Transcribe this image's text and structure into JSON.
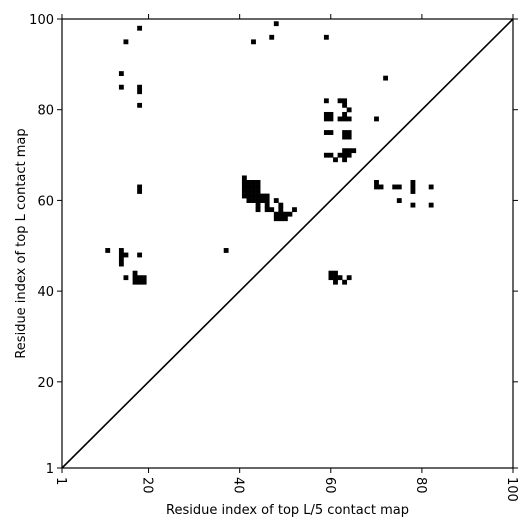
{
  "chart_data": {
    "type": "scatter",
    "xlabel": "Residue index of top L/5 contact map",
    "ylabel": "Residue index of top L contact map",
    "xlim": [
      1,
      100
    ],
    "ylim": [
      1,
      100
    ],
    "x_ticks": [
      1,
      20,
      40,
      60,
      80,
      100
    ],
    "y_ticks": [
      1,
      20,
      40,
      60,
      80,
      100
    ],
    "diagonal_line": {
      "from": [
        1,
        1
      ],
      "to": [
        100,
        100
      ]
    },
    "marker": "filled-square",
    "series": [
      {
        "values": [
          [
            18,
            98
          ],
          [
            15,
            95
          ],
          [
            43,
            95
          ],
          [
            47,
            96
          ],
          [
            48,
            99
          ],
          [
            59,
            96
          ],
          [
            14,
            88
          ],
          [
            14,
            85
          ],
          [
            18,
            84
          ],
          [
            18,
            85
          ],
          [
            18,
            81
          ],
          [
            72,
            87
          ],
          [
            18,
            62
          ],
          [
            18,
            63
          ],
          [
            11,
            49
          ],
          [
            14,
            49
          ],
          [
            14,
            48
          ],
          [
            14,
            47
          ],
          [
            14,
            46
          ],
          [
            15,
            48
          ],
          [
            18,
            48
          ],
          [
            37,
            49
          ],
          [
            15,
            43
          ],
          [
            17,
            44
          ],
          [
            17,
            42
          ],
          [
            17,
            43
          ],
          [
            18,
            42
          ],
          [
            18,
            43
          ],
          [
            19,
            42
          ],
          [
            19,
            43
          ],
          [
            59,
            82
          ],
          [
            62,
            82
          ],
          [
            63,
            82
          ],
          [
            63,
            81
          ],
          [
            64,
            80
          ],
          [
            59,
            79
          ],
          [
            60,
            79
          ],
          [
            59,
            78
          ],
          [
            60,
            78
          ],
          [
            62,
            78
          ],
          [
            63,
            78
          ],
          [
            64,
            78
          ],
          [
            63,
            79
          ],
          [
            70,
            78
          ],
          [
            59,
            75
          ],
          [
            60,
            75
          ],
          [
            63,
            75
          ],
          [
            64,
            75
          ],
          [
            63,
            74
          ],
          [
            64,
            74
          ],
          [
            59,
            70
          ],
          [
            60,
            70
          ],
          [
            61,
            69
          ],
          [
            62,
            70
          ],
          [
            63,
            69
          ],
          [
            63,
            70
          ],
          [
            64,
            70
          ],
          [
            63,
            71
          ],
          [
            64,
            71
          ],
          [
            65,
            71
          ],
          [
            70,
            64
          ],
          [
            70,
            63
          ],
          [
            71,
            63
          ],
          [
            74,
            63
          ],
          [
            75,
            63
          ],
          [
            78,
            64
          ],
          [
            78,
            63
          ],
          [
            78,
            62
          ],
          [
            82,
            63
          ],
          [
            75,
            60
          ],
          [
            78,
            59
          ],
          [
            82,
            59
          ],
          [
            41,
            65
          ],
          [
            41,
            64
          ],
          [
            41,
            63
          ],
          [
            41,
            62
          ],
          [
            41,
            61
          ],
          [
            42,
            64
          ],
          [
            42,
            63
          ],
          [
            42,
            62
          ],
          [
            42,
            61
          ],
          [
            42,
            60
          ],
          [
            43,
            64
          ],
          [
            43,
            63
          ],
          [
            43,
            62
          ],
          [
            43,
            61
          ],
          [
            43,
            60
          ],
          [
            44,
            64
          ],
          [
            44,
            63
          ],
          [
            44,
            62
          ],
          [
            44,
            61
          ],
          [
            44,
            60
          ],
          [
            44,
            59
          ],
          [
            44,
            58
          ],
          [
            45,
            61
          ],
          [
            45,
            60
          ],
          [
            46,
            61
          ],
          [
            46,
            60
          ],
          [
            46,
            59
          ],
          [
            46,
            58
          ],
          [
            47,
            58
          ],
          [
            48,
            60
          ],
          [
            48,
            57
          ],
          [
            48,
            56
          ],
          [
            49,
            59
          ],
          [
            49,
            58
          ],
          [
            49,
            57
          ],
          [
            49,
            56
          ],
          [
            50,
            57
          ],
          [
            50,
            56
          ],
          [
            51,
            57
          ],
          [
            52,
            58
          ],
          [
            60,
            44
          ],
          [
            61,
            44
          ],
          [
            60,
            43
          ],
          [
            61,
            43
          ],
          [
            61,
            42
          ],
          [
            62,
            43
          ],
          [
            63,
            42
          ],
          [
            64,
            43
          ]
        ]
      }
    ]
  }
}
